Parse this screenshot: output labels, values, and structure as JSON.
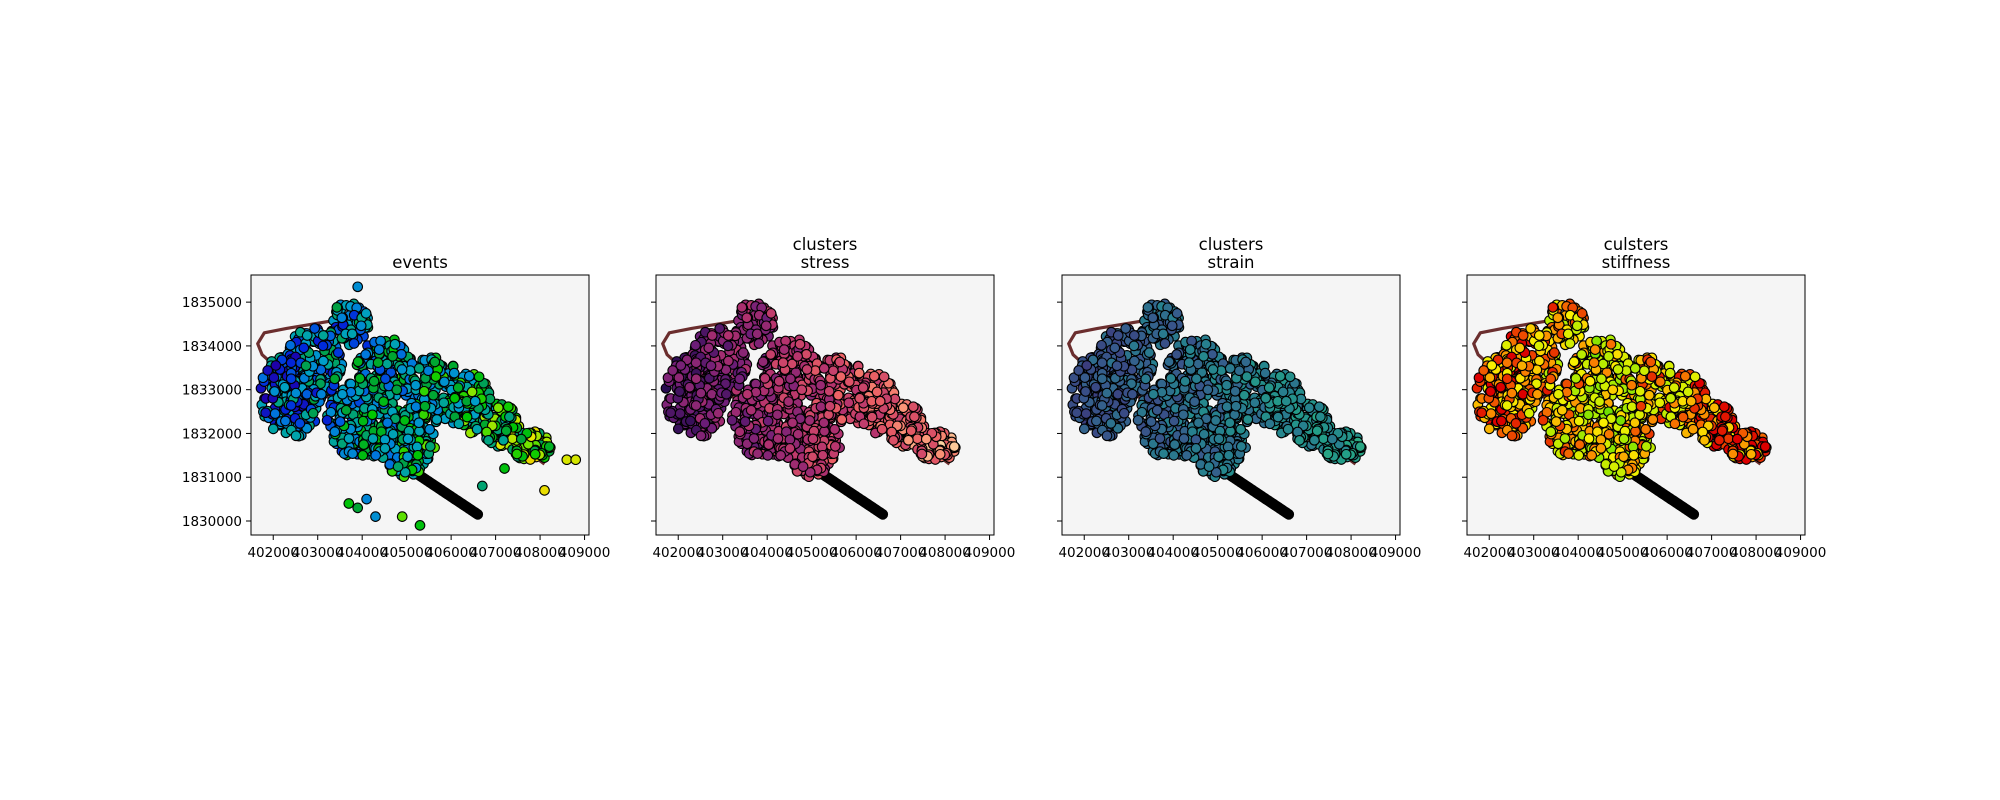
{
  "figure": {
    "background": "#ffffff",
    "axes_facecolor": "#f5f5f5"
  },
  "chart_data": [
    {
      "type": "scatter",
      "title_lines": [
        "events"
      ],
      "colormap": "nipy_spectral",
      "xlim": [
        401500,
        409100
      ],
      "ylim": [
        1829680,
        1835620
      ],
      "xticks": [
        402000,
        403000,
        404000,
        405000,
        406000,
        407000,
        408000,
        409000
      ],
      "yticks": [
        1830000,
        1831000,
        1832000,
        1833000,
        1834000,
        1835000
      ],
      "show_ytick_labels": true,
      "outliers": [
        {
          "x": 403700,
          "y": 1830400
        },
        {
          "x": 403900,
          "y": 1830300
        },
        {
          "x": 404100,
          "y": 1830500
        },
        {
          "x": 404300,
          "y": 1830100
        },
        {
          "x": 404900,
          "y": 1830100
        },
        {
          "x": 405300,
          "y": 1829900
        },
        {
          "x": 403900,
          "y": 1835350
        },
        {
          "x": 406700,
          "y": 1830800
        },
        {
          "x": 407200,
          "y": 1831200
        },
        {
          "x": 408100,
          "y": 1830700
        },
        {
          "x": 408600,
          "y": 1831400
        },
        {
          "x": 408800,
          "y": 1831400
        }
      ]
    },
    {
      "type": "scatter",
      "title_lines": [
        "clusters",
        "stress"
      ],
      "colormap": "magma",
      "xlim": [
        401500,
        409100
      ],
      "ylim": [
        1829680,
        1835620
      ],
      "xticks": [
        402000,
        403000,
        404000,
        405000,
        406000,
        407000,
        408000,
        409000
      ],
      "yticks": [
        1830000,
        1831000,
        1832000,
        1833000,
        1834000,
        1835000
      ],
      "show_ytick_labels": false,
      "outliers": []
    },
    {
      "type": "scatter",
      "title_lines": [
        "clusters",
        "strain"
      ],
      "colormap": "viridis",
      "xlim": [
        401500,
        409100
      ],
      "ylim": [
        1829680,
        1835620
      ],
      "xticks": [
        402000,
        403000,
        404000,
        405000,
        406000,
        407000,
        408000,
        409000
      ],
      "yticks": [
        1830000,
        1831000,
        1832000,
        1833000,
        1834000,
        1835000
      ],
      "show_ytick_labels": false,
      "outliers": []
    },
    {
      "type": "scatter",
      "title_lines": [
        "culsters",
        "stiffness"
      ],
      "colormap": "red-yellow-green",
      "xlim": [
        401500,
        409100
      ],
      "ylim": [
        1829680,
        1835620
      ],
      "xticks": [
        402000,
        403000,
        404000,
        405000,
        406000,
        407000,
        408000,
        409000
      ],
      "yticks": [
        1830000,
        1831000,
        1832000,
        1833000,
        1834000,
        1835000
      ],
      "show_ytick_labels": false,
      "outliers": []
    }
  ],
  "track_line": {
    "color": "#6b2e2e",
    "points": [
      {
        "x": 403500,
        "y": 1834600
      },
      {
        "x": 402300,
        "y": 1834400
      },
      {
        "x": 401800,
        "y": 1834300
      },
      {
        "x": 401650,
        "y": 1834050
      },
      {
        "x": 401750,
        "y": 1833800
      },
      {
        "x": 402300,
        "y": 1833300
      },
      {
        "x": 403000,
        "y": 1832900
      },
      {
        "x": 404000,
        "y": 1832600
      },
      {
        "x": 405000,
        "y": 1832400
      },
      {
        "x": 406000,
        "y": 1832300
      },
      {
        "x": 407000,
        "y": 1831900
      },
      {
        "x": 407700,
        "y": 1831600
      },
      {
        "x": 408100,
        "y": 1831300
      }
    ]
  },
  "tail_line": {
    "color": "#000000",
    "points": [
      {
        "x": 405200,
        "y": 1831100
      },
      {
        "x": 406600,
        "y": 1830150
      }
    ]
  },
  "cluster_regions": [
    {
      "cx": 402400,
      "cy": 1832900,
      "rx": 700,
      "ry": 1000,
      "w": 1.2
    },
    {
      "cx": 402900,
      "cy": 1833600,
      "rx": 650,
      "ry": 800,
      "w": 1.0
    },
    {
      "cx": 403700,
      "cy": 1834500,
      "rx": 450,
      "ry": 500,
      "w": 0.6
    },
    {
      "cx": 404000,
      "cy": 1832300,
      "rx": 800,
      "ry": 900,
      "w": 1.4
    },
    {
      "cx": 404500,
      "cy": 1833500,
      "rx": 650,
      "ry": 700,
      "w": 1.0
    },
    {
      "cx": 405000,
      "cy": 1831800,
      "rx": 650,
      "ry": 800,
      "w": 1.1
    },
    {
      "cx": 405600,
      "cy": 1833000,
      "rx": 650,
      "ry": 750,
      "w": 1.0
    },
    {
      "cx": 406400,
      "cy": 1832700,
      "rx": 500,
      "ry": 700,
      "w": 0.8
    },
    {
      "cx": 407100,
      "cy": 1832200,
      "rx": 450,
      "ry": 500,
      "w": 0.6
    },
    {
      "cx": 407800,
      "cy": 1831700,
      "rx": 450,
      "ry": 350,
      "w": 0.5
    }
  ],
  "points_per_panel": 1500,
  "tail_points": 50
}
